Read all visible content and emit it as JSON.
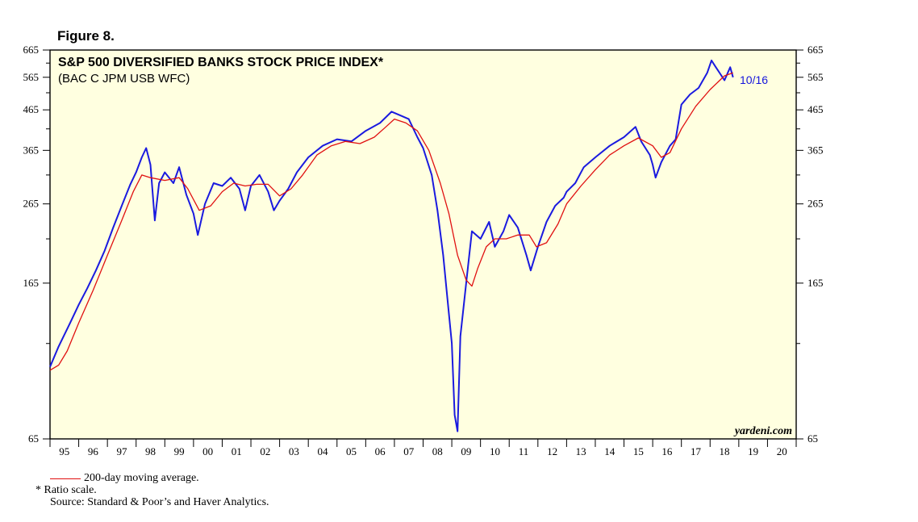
{
  "figure_label": "Figure 8.",
  "chart_data": {
    "type": "line",
    "title": "S&P 500 DIVERSIFIED BANKS STOCK PRICE INDEX*",
    "subtitle": "(BAC C JPM USB WFC)",
    "y_scale": "log",
    "ylim": [
      65,
      665
    ],
    "y_ticks": [
      65,
      165,
      265,
      365,
      465,
      565,
      665
    ],
    "y_tick_labels": [
      "65",
      "165",
      "265",
      "365",
      "465",
      "565",
      "665"
    ],
    "y_minor_ticks": [
      115,
      215,
      315,
      415,
      515,
      615
    ],
    "xlim": [
      1995,
      2021
    ],
    "x_tick_labels": [
      "95",
      "96",
      "97",
      "98",
      "99",
      "00",
      "01",
      "02",
      "03",
      "04",
      "05",
      "06",
      "07",
      "08",
      "09",
      "10",
      "11",
      "12",
      "13",
      "14",
      "15",
      "16",
      "17",
      "18",
      "19",
      "20"
    ],
    "last_label": "10/16",
    "watermark": "yardeni.com",
    "grid": false,
    "series": [
      {
        "name": "",
        "color": "#1a1adf",
        "points": [
          [
            1995.0,
            100
          ],
          [
            1995.3,
            113
          ],
          [
            1995.7,
            130
          ],
          [
            1996.0,
            145
          ],
          [
            1996.3,
            160
          ],
          [
            1996.6,
            178
          ],
          [
            1996.9,
            200
          ],
          [
            1997.2,
            230
          ],
          [
            1997.5,
            262
          ],
          [
            1997.8,
            298
          ],
          [
            1998.0,
            320
          ],
          [
            1998.2,
            350
          ],
          [
            1998.35,
            370
          ],
          [
            1998.5,
            335
          ],
          [
            1998.65,
            240
          ],
          [
            1998.8,
            300
          ],
          [
            1999.0,
            320
          ],
          [
            1999.3,
            300
          ],
          [
            1999.5,
            330
          ],
          [
            1999.75,
            280
          ],
          [
            2000.0,
            250
          ],
          [
            2000.15,
            220
          ],
          [
            2000.4,
            265
          ],
          [
            2000.7,
            300
          ],
          [
            2001.0,
            295
          ],
          [
            2001.3,
            310
          ],
          [
            2001.6,
            290
          ],
          [
            2001.8,
            255
          ],
          [
            2002.0,
            295
          ],
          [
            2002.3,
            315
          ],
          [
            2002.6,
            285
          ],
          [
            2002.8,
            255
          ],
          [
            2003.0,
            270
          ],
          [
            2003.3,
            290
          ],
          [
            2003.6,
            320
          ],
          [
            2004.0,
            350
          ],
          [
            2004.5,
            375
          ],
          [
            2005.0,
            390
          ],
          [
            2005.5,
            385
          ],
          [
            2006.0,
            410
          ],
          [
            2006.5,
            430
          ],
          [
            2006.9,
            460
          ],
          [
            2007.2,
            450
          ],
          [
            2007.5,
            440
          ],
          [
            2007.8,
            395
          ],
          [
            2008.0,
            370
          ],
          [
            2008.3,
            315
          ],
          [
            2008.5,
            255
          ],
          [
            2008.7,
            195
          ],
          [
            2008.85,
            150
          ],
          [
            2009.0,
            115
          ],
          [
            2009.1,
            75
          ],
          [
            2009.2,
            68
          ],
          [
            2009.3,
            120
          ],
          [
            2009.5,
            165
          ],
          [
            2009.7,
            225
          ],
          [
            2010.0,
            215
          ],
          [
            2010.3,
            238
          ],
          [
            2010.5,
            205
          ],
          [
            2010.8,
            225
          ],
          [
            2011.0,
            248
          ],
          [
            2011.3,
            230
          ],
          [
            2011.6,
            195
          ],
          [
            2011.75,
            178
          ],
          [
            2012.0,
            205
          ],
          [
            2012.3,
            238
          ],
          [
            2012.6,
            262
          ],
          [
            2012.9,
            275
          ],
          [
            2013.0,
            285
          ],
          [
            2013.3,
            300
          ],
          [
            2013.6,
            330
          ],
          [
            2014.0,
            350
          ],
          [
            2014.5,
            375
          ],
          [
            2015.0,
            395
          ],
          [
            2015.4,
            420
          ],
          [
            2015.6,
            385
          ],
          [
            2015.9,
            355
          ],
          [
            2016.0,
            335
          ],
          [
            2016.1,
            310
          ],
          [
            2016.3,
            340
          ],
          [
            2016.6,
            375
          ],
          [
            2016.8,
            390
          ],
          [
            2017.0,
            480
          ],
          [
            2017.3,
            510
          ],
          [
            2017.6,
            530
          ],
          [
            2017.9,
            580
          ],
          [
            2018.05,
            625
          ],
          [
            2018.2,
            600
          ],
          [
            2018.5,
            555
          ],
          [
            2018.7,
            600
          ],
          [
            2018.8,
            565
          ]
        ]
      },
      {
        "name": "200-day moving average.",
        "color": "#e01010",
        "points": [
          [
            1995.0,
            98
          ],
          [
            1995.3,
            101
          ],
          [
            1995.6,
            110
          ],
          [
            1996.0,
            130
          ],
          [
            1996.5,
            158
          ],
          [
            1997.0,
            195
          ],
          [
            1997.5,
            240
          ],
          [
            1997.9,
            285
          ],
          [
            1998.2,
            315
          ],
          [
            1998.5,
            310
          ],
          [
            1999.0,
            305
          ],
          [
            1999.5,
            310
          ],
          [
            1999.8,
            290
          ],
          [
            2000.2,
            255
          ],
          [
            2000.6,
            262
          ],
          [
            2001.0,
            285
          ],
          [
            2001.4,
            300
          ],
          [
            2001.8,
            295
          ],
          [
            2002.2,
            298
          ],
          [
            2002.6,
            298
          ],
          [
            2003.0,
            278
          ],
          [
            2003.4,
            290
          ],
          [
            2003.8,
            315
          ],
          [
            2004.3,
            355
          ],
          [
            2004.8,
            375
          ],
          [
            2005.3,
            385
          ],
          [
            2005.8,
            380
          ],
          [
            2006.3,
            395
          ],
          [
            2006.7,
            420
          ],
          [
            2007.0,
            440
          ],
          [
            2007.4,
            430
          ],
          [
            2007.8,
            410
          ],
          [
            2008.2,
            365
          ],
          [
            2008.6,
            300
          ],
          [
            2008.9,
            250
          ],
          [
            2009.2,
            195
          ],
          [
            2009.5,
            168
          ],
          [
            2009.7,
            162
          ],
          [
            2009.9,
            180
          ],
          [
            2010.2,
            205
          ],
          [
            2010.5,
            215
          ],
          [
            2010.9,
            215
          ],
          [
            2011.3,
            220
          ],
          [
            2011.7,
            220
          ],
          [
            2011.95,
            205
          ],
          [
            2012.3,
            210
          ],
          [
            2012.7,
            235
          ],
          [
            2013.0,
            265
          ],
          [
            2013.5,
            295
          ],
          [
            2014.0,
            325
          ],
          [
            2014.5,
            355
          ],
          [
            2015.0,
            375
          ],
          [
            2015.5,
            393
          ],
          [
            2016.0,
            375
          ],
          [
            2016.3,
            350
          ],
          [
            2016.6,
            360
          ],
          [
            2017.0,
            415
          ],
          [
            2017.5,
            475
          ],
          [
            2018.0,
            525
          ],
          [
            2018.5,
            570
          ],
          [
            2018.8,
            580
          ]
        ]
      }
    ]
  },
  "footer": {
    "legend_label": "200-day moving average.",
    "note": "*  Ratio scale.",
    "source": "Source: Standard & Poor’s and Haver Analytics."
  }
}
